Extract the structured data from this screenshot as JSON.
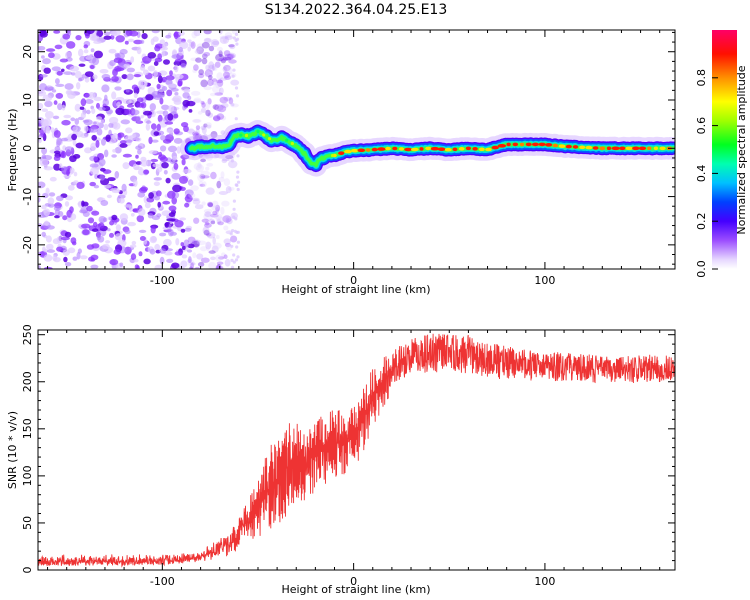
{
  "title": "S134.2022.364.04.25.E13",
  "chart_data": [
    {
      "type": "heatmap",
      "xlabel": "Height of straight line (km)",
      "ylabel": "Frequency (Hz)",
      "xlim": [
        -165,
        168
      ],
      "ylim": [
        -25,
        24.5
      ],
      "xticks": [
        -100,
        0,
        100
      ],
      "yticks": [
        -20,
        -10,
        0,
        10,
        20
      ],
      "colorbar": {
        "label": "Normalized spectral amplitude",
        "range": [
          0,
          1
        ],
        "ticks": [
          0.0,
          0.2,
          0.4,
          0.6,
          0.8
        ],
        "colors": [
          "#ffffff",
          "#d9c2ff",
          "#8a2be2",
          "#4b00ff",
          "#0000ff",
          "#0080ff",
          "#00ffff",
          "#00ff80",
          "#00ff00",
          "#80ff00",
          "#ffff00",
          "#ff8000",
          "#ff0000",
          "#ff0066"
        ]
      },
      "ridge": {
        "x": [
          -85,
          -80,
          -75,
          -70,
          -65,
          -62,
          -58,
          -54,
          -50,
          -46,
          -42,
          -38,
          -34,
          -30,
          -26,
          -22,
          -20,
          -18,
          -14,
          -10,
          -5,
          0,
          10,
          20,
          30,
          40,
          50,
          60,
          70,
          80,
          90,
          100,
          110,
          120,
          130,
          140,
          150,
          160,
          167
        ],
        "y": [
          0,
          0.3,
          0.5,
          0.3,
          0.8,
          2.5,
          2.8,
          2.5,
          3.5,
          2.5,
          1.5,
          2.2,
          1.5,
          0.5,
          -1,
          -3,
          -3.5,
          -2.5,
          -1.5,
          -1.5,
          -0.8,
          -0.5,
          -0.3,
          0,
          -0.3,
          0,
          -0.3,
          0,
          -0.3,
          0.8,
          0.8,
          0.8,
          0.4,
          0.2,
          0,
          0,
          0,
          0,
          0
        ]
      },
      "noise_region_x": [
        -165,
        -62
      ]
    },
    {
      "type": "line",
      "xlabel": "Height of straight line (km)",
      "ylabel": "SNR (10 * v/v)",
      "xlim": [
        -165,
        168
      ],
      "ylim": [
        0,
        255
      ],
      "xticks": [
        -100,
        0,
        100
      ],
      "yticks": [
        0,
        50,
        100,
        150,
        200,
        250
      ],
      "color": "#ee3333",
      "series": [
        {
          "envelope_x": [
            -165,
            -150,
            -120,
            -100,
            -90,
            -80,
            -75,
            -70,
            -65,
            -60,
            -55,
            -50,
            -45,
            -40,
            -35,
            -30,
            -25,
            -20,
            -15,
            -10,
            -5,
            0,
            5,
            10,
            15,
            20,
            25,
            30,
            35,
            40,
            50,
            60,
            70,
            80,
            90,
            100,
            110,
            120,
            130,
            140,
            150,
            160,
            168
          ],
          "low": [
            4,
            4,
            4,
            5,
            6,
            8,
            10,
            12,
            15,
            18,
            22,
            25,
            20,
            30,
            40,
            50,
            60,
            70,
            75,
            80,
            85,
            95,
            110,
            140,
            160,
            180,
            190,
            195,
            195,
            195,
            195,
            195,
            190,
            190,
            190,
            190,
            190,
            190,
            188,
            190,
            188,
            190,
            190
          ],
          "high": [
            16,
            18,
            17,
            18,
            20,
            24,
            30,
            40,
            50,
            62,
            75,
            95,
            130,
            140,
            155,
            160,
            150,
            160,
            170,
            170,
            175,
            178,
            195,
            215,
            225,
            232,
            240,
            245,
            250,
            252,
            250,
            250,
            242,
            238,
            235,
            232,
            232,
            230,
            228,
            228,
            228,
            230,
            225
          ]
        }
      ]
    }
  ]
}
